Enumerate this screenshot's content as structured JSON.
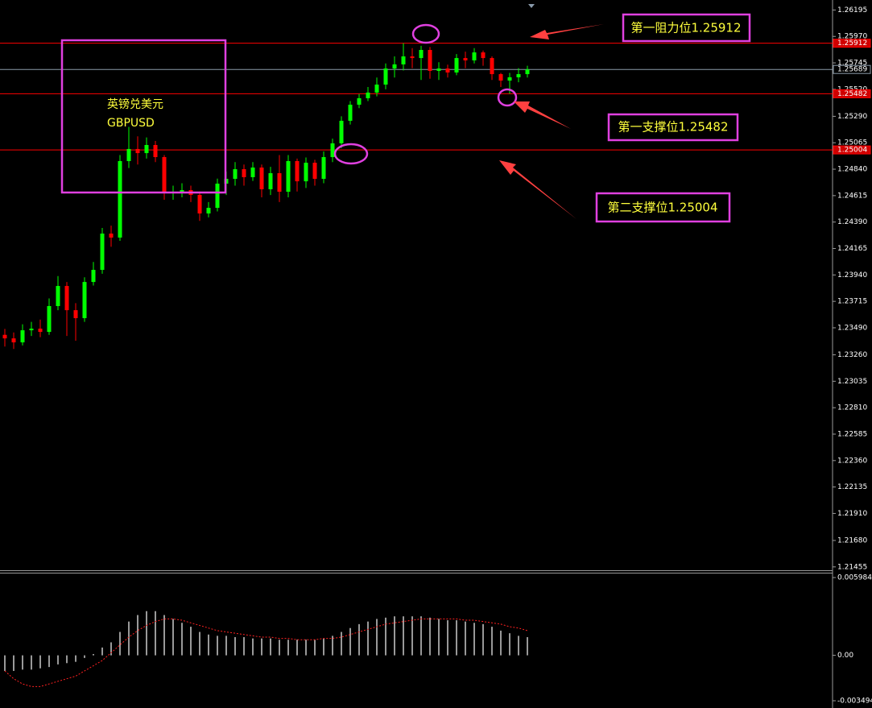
{
  "chart_data": [
    {
      "type": "candlestick",
      "up_color": "#00ff00",
      "down_color": "#ff0000",
      "ylim": [
        1.2144,
        1.2628
      ],
      "yticks": [
        1.26195,
        {
          "value": 1.2597,
          "label": "1.25970"
        },
        1.25745,
        {
          "value": 1.2552,
          "label": "1.25520"
        },
        {
          "value": 1.2529,
          "label": "1.25290"
        },
        1.25065,
        {
          "value": 1.2484,
          "label": "1.24840"
        },
        1.24615,
        {
          "value": 1.2439,
          "label": "1.24390"
        },
        1.24165,
        {
          "value": 1.2394,
          "label": "1.23940"
        },
        1.23715,
        {
          "value": 1.2349,
          "label": "1.23490"
        },
        {
          "value": 1.2326,
          "label": "1.23260"
        },
        1.23035,
        {
          "value": 1.2281,
          "label": "1.22810"
        },
        1.22585,
        {
          "value": 1.2236,
          "label": "1.22360"
        },
        1.22135,
        {
          "value": 1.2191,
          "label": "1.21910"
        },
        {
          "value": 1.2168,
          "label": "1.21680"
        },
        1.21455
      ],
      "levels": [
        {
          "value": 1.25912,
          "color": "#ff0000"
        },
        {
          "value": 1.25689,
          "color": "#8a9aa8"
        },
        {
          "value": 1.25482,
          "color": "#ff0000"
        },
        {
          "value": 1.25004,
          "color": "#ff0000"
        }
      ],
      "annotations": [
        "英镑兑美元",
        "GBPUSD",
        "第一阻力位1.25912",
        "第一支撑位1.25482",
        "第二支撑位1.25004"
      ],
      "open": [
        1.2343,
        1.234,
        1.23366,
        1.23469,
        1.23483,
        1.23455,
        1.23675,
        1.23846,
        1.2364,
        1.23572,
        1.2388,
        1.23983,
        1.24292,
        1.24258,
        1.24909,
        1.25012,
        1.24977,
        1.25046,
        1.24943,
        1.24635,
        1.24648,
        1.24662,
        1.24621,
        1.24463,
        1.24511,
        1.24717,
        1.24758,
        1.2484,
        1.24772,
        1.24854,
        1.24669,
        1.24806,
        1.24648,
        1.24909,
        1.24737,
        1.24895,
        1.24758,
        1.24943,
        1.2506,
        1.25252,
        1.25389,
        1.25444,
        1.25492,
        1.2556,
        1.25697,
        1.25732,
        1.258,
        1.25786,
        1.25855,
        1.25677,
        1.25697,
        1.25663,
        1.25786,
        1.25766,
        1.25834,
        1.25786,
        1.25649,
        1.25594,
        1.25622,
        1.25649
      ],
      "high": [
        1.2348,
        1.2345,
        1.2352,
        1.2354,
        1.2356,
        1.2374,
        1.2393,
        1.2388,
        1.237,
        1.2392,
        1.2405,
        1.2434,
        1.2436,
        1.2496,
        1.252,
        1.2512,
        1.2511,
        1.2508,
        1.2496,
        1.247,
        1.2472,
        1.247,
        1.2465,
        1.2456,
        1.2476,
        1.2482,
        1.249,
        1.2488,
        1.249,
        1.2488,
        1.2486,
        1.2496,
        1.2496,
        1.2493,
        1.2494,
        1.2492,
        1.2499,
        1.251,
        1.2529,
        1.2542,
        1.2548,
        1.2554,
        1.2562,
        1.2574,
        1.258,
        1.25912,
        1.2587,
        1.2589,
        1.2588,
        1.2575,
        1.2573,
        1.2582,
        1.2584,
        1.2587,
        1.2585,
        1.258,
        1.2566,
        1.2566,
        1.257,
        1.2572
      ],
      "low": [
        1.2333,
        1.2331,
        1.2334,
        1.2342,
        1.2341,
        1.2343,
        1.2364,
        1.2342,
        1.2338,
        1.2354,
        1.2385,
        1.2395,
        1.2418,
        1.2423,
        1.2485,
        1.2488,
        1.2493,
        1.249,
        1.2458,
        1.2458,
        1.246,
        1.2456,
        1.244,
        1.2443,
        1.2448,
        1.2462,
        1.247,
        1.247,
        1.2474,
        1.246,
        1.2462,
        1.2456,
        1.246,
        1.2465,
        1.2468,
        1.247,
        1.2472,
        1.249,
        1.2502,
        1.2522,
        1.2536,
        1.2542,
        1.2546,
        1.2552,
        1.2562,
        1.2568,
        1.257,
        1.256,
        1.2561,
        1.256,
        1.2562,
        1.2564,
        1.257,
        1.2574,
        1.2572,
        1.256,
        1.2554,
        1.25482,
        1.2558,
        1.2562
      ],
      "close": [
        1.234,
        1.23366,
        1.23469,
        1.23483,
        1.23455,
        1.23675,
        1.23846,
        1.2364,
        1.23572,
        1.2388,
        1.23983,
        1.24292,
        1.24258,
        1.24909,
        1.25012,
        1.24977,
        1.25046,
        1.24943,
        1.24635,
        1.24648,
        1.24662,
        1.24621,
        1.24463,
        1.24511,
        1.24717,
        1.24758,
        1.2484,
        1.24772,
        1.24854,
        1.24669,
        1.24806,
        1.24648,
        1.24909,
        1.24737,
        1.24895,
        1.24758,
        1.24943,
        1.2506,
        1.25252,
        1.25389,
        1.25444,
        1.25492,
        1.2556,
        1.25697,
        1.25732,
        1.258,
        1.25786,
        1.25855,
        1.25677,
        1.25697,
        1.25663,
        1.25786,
        1.25766,
        1.25834,
        1.25786,
        1.25649,
        1.25594,
        1.25622,
        1.25649,
        1.25689
      ]
    },
    {
      "type": "oscillator",
      "ylim": [
        -0.00399,
        0.00642
      ],
      "yticks": [
        0.005984,
        {
          "value": 0,
          "label": "0.00"
        },
        -0.003494
      ],
      "series": [
        {
          "type": "bar",
          "color": "#ffffff",
          "values": [
            -0.0012,
            -0.0012,
            -0.0011,
            -0.0011,
            -0.001,
            -0.0009,
            -0.0007,
            -0.0006,
            -0.0005,
            -0.0002,
            0.0001,
            0.0006,
            0.001,
            0.0018,
            0.0026,
            0.0031,
            0.0034,
            0.0034,
            0.0031,
            0.0028,
            0.0025,
            0.0022,
            0.0018,
            0.0016,
            0.0015,
            0.0015,
            0.0014,
            0.0014,
            0.0013,
            0.0013,
            0.0013,
            0.0012,
            0.0012,
            0.0012,
            0.0012,
            0.0012,
            0.0013,
            0.0015,
            0.0018,
            0.0021,
            0.0024,
            0.0026,
            0.0028,
            0.0029,
            0.003,
            0.003,
            0.003,
            0.003,
            0.0029,
            0.0028,
            0.0027,
            0.0027,
            0.0026,
            0.0025,
            0.0024,
            0.0022,
            0.0019,
            0.0017,
            0.0015,
            0.0014
          ]
        },
        {
          "type": "line",
          "color": "#ff2020",
          "values": [
            -0.0012,
            -0.0018,
            -0.0022,
            -0.0024,
            -0.0024,
            -0.0022,
            -0.002,
            -0.0018,
            -0.0016,
            -0.0012,
            -0.0008,
            -0.0004,
            0.0002,
            0.0008,
            0.0014,
            0.0019,
            0.0023,
            0.0026,
            0.0028,
            0.0028,
            0.0027,
            0.0025,
            0.0023,
            0.0021,
            0.0019,
            0.0018,
            0.0017,
            0.0016,
            0.0015,
            0.0014,
            0.0014,
            0.0013,
            0.0013,
            0.0012,
            0.0012,
            0.0012,
            0.0013,
            0.0013,
            0.0014,
            0.0016,
            0.0018,
            0.002,
            0.0022,
            0.0024,
            0.0025,
            0.0026,
            0.0027,
            0.0028,
            0.0028,
            0.0028,
            0.0028,
            0.0028,
            0.0027,
            0.0027,
            0.0026,
            0.0025,
            0.0024,
            0.0022,
            0.0021,
            0.0019
          ]
        }
      ]
    }
  ]
}
